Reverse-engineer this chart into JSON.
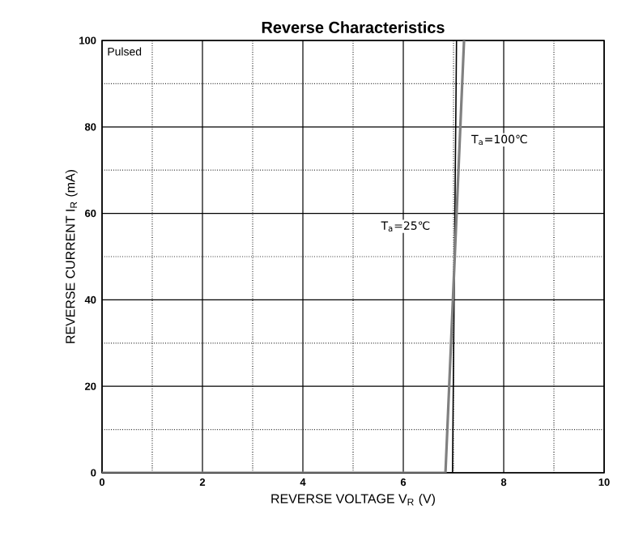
{
  "chart_data": {
    "type": "line",
    "title": "Reverse   Characteristics",
    "xlabel": "REVERSE VOLTAGE   V$_{R}$   (V)",
    "ylabel": "REVERSE CURRENT   I$_{R}$   (mA)",
    "series": [
      {
        "name": "T$_{a}$=25℃",
        "color": "#000000",
        "x": [
          0,
          6.98,
          7.06
        ],
        "values": [
          0,
          0,
          100
        ]
      },
      {
        "name": "T$_{a}$=100℃",
        "color": "#808080",
        "x": [
          0,
          6.84,
          7.21
        ],
        "values": [
          0,
          0,
          100
        ]
      }
    ],
    "xlim": [
      0,
      10
    ],
    "ylim": [
      0,
      100
    ],
    "xticks": [
      0,
      2,
      4,
      6,
      8,
      10
    ],
    "yticks": [
      0,
      20,
      40,
      60,
      80,
      100
    ],
    "grid": true,
    "marker": "none",
    "line_style": "solid",
    "annotations": [
      "Pulsed"
    ]
  }
}
